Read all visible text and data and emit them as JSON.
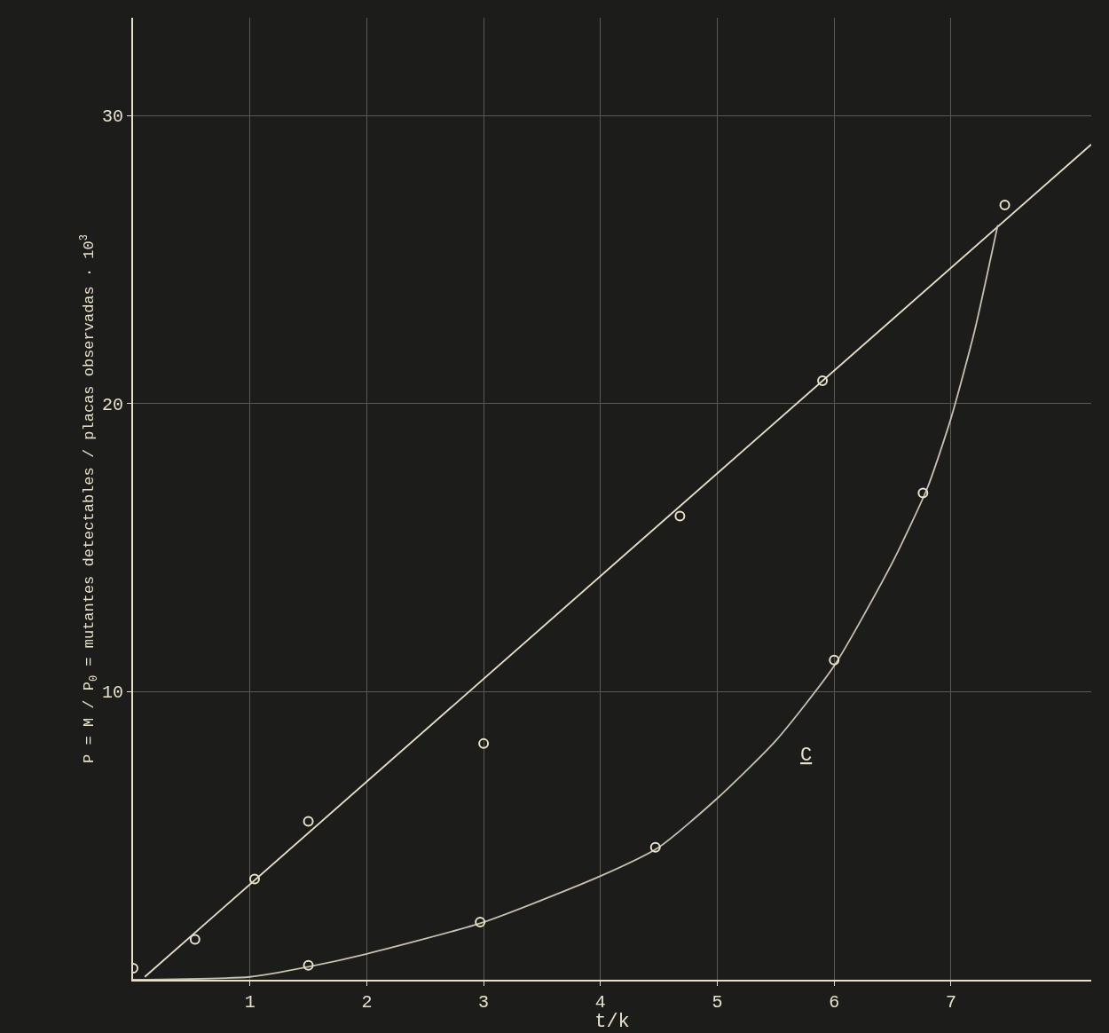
{
  "chart_data": {
    "type": "scatter",
    "ylabel": "P = M / P$_{0}$ = mutantes detectables / placas observadas · 10$^{3}$",
    "xlabel": "t/k",
    "xlim": [
      0,
      8.2
    ],
    "ylim": [
      0,
      33.4
    ],
    "xticks": [
      1,
      2,
      3,
      4,
      5,
      6,
      7
    ],
    "yticks": [
      10,
      20,
      30
    ],
    "grid": true,
    "marker": "circle",
    "series": [
      {
        "color": "#e8e0c8",
        "x": [
          0,
          0.53,
          1.04,
          1.5,
          3.0,
          4.68,
          5.9,
          7.46
        ],
        "values": [
          0.4,
          1.4,
          3.5,
          5.5,
          8.2,
          16.1,
          20.8,
          26.9
        ]
      },
      {
        "type": "line",
        "color": "#e8e0c8",
        "marker": "none",
        "line_style": "solid",
        "x": [
          0.1,
          8.2
        ],
        "values": [
          0.1,
          29.0
        ]
      },
      {
        "type": "line",
        "color": "#c8c0b0",
        "marker": "none",
        "line_style": "solid",
        "x": [
          0,
          1,
          1.5,
          2,
          3,
          4,
          4.5,
          5,
          5.5,
          6,
          6.5,
          6.8,
          7,
          7.2,
          7.4
        ],
        "values": [
          0,
          0.1,
          0.45,
          0.9,
          2.0,
          3.6,
          4.6,
          6.3,
          8.3,
          10.9,
          14.5,
          17.1,
          19.5,
          22.5,
          26.2
        ]
      },
      {
        "color": "#e8e0c8",
        "x": [
          1.5,
          2.97,
          4.47,
          6.0,
          6.76
        ],
        "values": [
          0.5,
          2.0,
          4.6,
          11.1,
          16.9
        ]
      }
    ],
    "annotations": [
      "C"
    ]
  }
}
